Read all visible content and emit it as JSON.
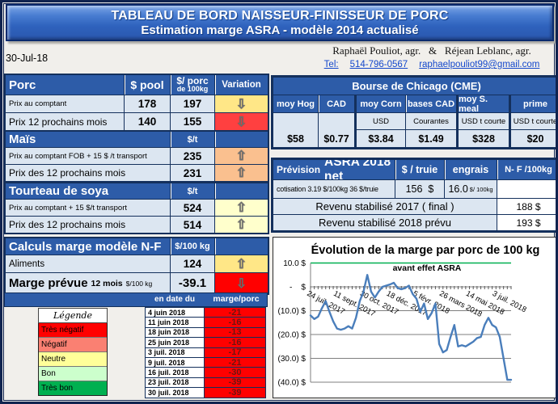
{
  "banner": {
    "line1": "TABLEAU DE BORD NAISSEUR-FINISSEUR DE PORC",
    "line2": "Estimation marge ASRA - modèle 2014 actualisé"
  },
  "date_label": "30-Jul-18",
  "contact": {
    "names": "Raphaël Pouliot, agr.   &   Réjean Leblanc, agr.",
    "tel_label": "Tel:",
    "phone": "514-796-0567",
    "email": "raphaelpouliot99@gmail.com"
  },
  "porc_table": {
    "title": "Porc",
    "col_pool": "$ pool",
    "col_porc_line1": "$/ porc",
    "col_porc_line2": "de 100kg",
    "col_variation": "Variation",
    "rows": [
      {
        "label": "Prix au comptant",
        "pool": "178",
        "porc": "197",
        "variation": "down",
        "variation_bg": "#FFE787"
      },
      {
        "label": "Prix 12 prochains mois",
        "pool": "140",
        "porc": "155",
        "variation": "down",
        "variation_bg": "#FF4040"
      }
    ]
  },
  "mais_table": {
    "title": "Maïs",
    "unit": "$/t",
    "rows": [
      {
        "label": "Prix au comptant  FOB + 15 $ /t transport",
        "value": "235",
        "variation": "up",
        "variation_bg": "#FAC08F"
      },
      {
        "label": "Prix des 12 prochains mois",
        "value": "231",
        "variation": "up",
        "variation_bg": "#FAC08F"
      }
    ]
  },
  "tourteau_table": {
    "title": "Tourteau de soya",
    "unit": "$/t",
    "rows": [
      {
        "label": "Prix au comptant + 15 $/t  transport",
        "value": "524",
        "variation": "up",
        "variation_bg": "#FFFFCC"
      },
      {
        "label": "Prix des 12 prochains mois",
        "value": "514",
        "variation": "up",
        "variation_bg": "#FFFFCC"
      }
    ]
  },
  "calculs_table": {
    "title": "Calculs marge  modèle N-F",
    "unit": "$/100 kg",
    "rows": [
      {
        "label": "Aliments",
        "value": "124",
        "variation": "up",
        "variation_bg": "#FFE787"
      },
      {
        "label": "Marge prévue",
        "label_mid": "12 mois",
        "label_small": "$/100 kg",
        "value": "-39.1",
        "variation": "down",
        "variation_bg": "#FF0000"
      }
    ]
  },
  "marge_table": {
    "col_date": "en date du",
    "col_value": "marge/porc",
    "value_bg": "#FF0000",
    "rows": [
      {
        "date": "4 juin 2018",
        "value": "-21"
      },
      {
        "date": "11 juin 2018",
        "value": "-16"
      },
      {
        "date": "18 juin 2018",
        "value": "-13"
      },
      {
        "date": "25 juin 2018",
        "value": "-16"
      },
      {
        "date": "3 juil. 2018",
        "value": "-17"
      },
      {
        "date": "9 juil. 2018",
        "value": "-21"
      },
      {
        "date": "16 juil. 2018",
        "value": "-30"
      },
      {
        "date": "23 juil. 2018",
        "value": "-39"
      },
      {
        "date": "30 juil. 2018",
        "value": "-39"
      }
    ]
  },
  "legende": {
    "title": "Légende",
    "items": [
      {
        "label": "Très négatif",
        "color": "#FF0000"
      },
      {
        "label": "Négatif",
        "color": "#FA8072"
      },
      {
        "label": "Neutre",
        "color": "#FFFF99"
      },
      {
        "label": "Bon",
        "color": "#CCFFCC"
      },
      {
        "label": "Très bon",
        "color": "#00B050"
      }
    ]
  },
  "chicago_table": {
    "title": "Bourse de Chicago (CME)",
    "columns": [
      {
        "header": "moy Hog",
        "unit": "",
        "value": "$58"
      },
      {
        "header": "CAD",
        "unit": "",
        "value": "$0.77"
      },
      {
        "header": "moy Corn",
        "unit": "USD",
        "value": "$3.84"
      },
      {
        "header": "bases CAD",
        "unit": "Courantes",
        "value": "$1.49"
      },
      {
        "header": "moy S. meal",
        "unit": "USD t courte",
        "value": "$328"
      },
      {
        "header": "prime",
        "unit": "USD t courte",
        "value": "$20"
      }
    ]
  },
  "prevision_table": {
    "title_prefix": "Prévision",
    "title_main": "ASRA 2018 net",
    "col_truie": "$ / truie",
    "col_engrais": "engrais",
    "col_nf": "N- F /100kg",
    "cotisation_label": "cotisation 3.19 $/100kg  36 $/truie",
    "truie_value": "156  $",
    "engrais_value": "16.0",
    "engrais_unit": "$/ 100kg",
    "rows": [
      {
        "label": "Revenu stabilisé 2017 ( final )",
        "value": "188 $"
      },
      {
        "label": "Revenu stabilisé 2018 prévu",
        "value": "193 $"
      }
    ]
  },
  "chart_data": {
    "type": "line",
    "title": "Évolution de la marge par porc de 100 kg",
    "subtitle": "avant effet ASRA",
    "ylim": [
      -40,
      10
    ],
    "grid": true,
    "legend_position": "none",
    "line_color": "#4a7ebb",
    "gridline_color": "#7f7f7f",
    "top_gridline_color": "#00B050",
    "y_ticks": [
      {
        "value": 10,
        "label": "10.0 $"
      },
      {
        "value": 0,
        "label": "-    $"
      },
      {
        "value": -10,
        "label": "(10.0) $"
      },
      {
        "value": -20,
        "label": "(20.0) $"
      },
      {
        "value": -30,
        "label": "(30.0) $"
      },
      {
        "value": -40,
        "label": "(40.0) $"
      }
    ],
    "x_ticks": [
      {
        "index": 0,
        "label": "24 juil. 2017"
      },
      {
        "index": 7,
        "label": "11 sept. 2017"
      },
      {
        "index": 14,
        "label": "30 oct. 2017"
      },
      {
        "index": 21,
        "label": "18 déc. 2017"
      },
      {
        "index": 28,
        "label": "5 févr. 2018"
      },
      {
        "index": 35,
        "label": "26 mars 2018"
      },
      {
        "index": 42,
        "label": "14 mai 2018"
      },
      {
        "index": 49,
        "label": "3 juil. 2018"
      }
    ],
    "series": [
      {
        "name": "marge par porc de 100 kg avant effet ASRA ($)",
        "frequency": "weekly",
        "values": [
          -12,
          -13.5,
          -12.5,
          -9,
          -6,
          -10.5,
          -14.5,
          -17.5,
          -18,
          -17.5,
          -16.5,
          -17.5,
          -13,
          -6,
          -2,
          5,
          -2,
          -4.5,
          -2,
          0,
          0.5,
          1,
          1.7,
          -0.5,
          -1,
          -0.5,
          0.5,
          -3,
          -5,
          -10.5,
          -7,
          -13.5,
          -11,
          -7,
          -24,
          -27.5,
          -26.5,
          -21,
          -16,
          -25,
          -24.5,
          -25,
          -24,
          -23,
          -21.5,
          -21,
          -16,
          -13,
          -16,
          -17,
          -21,
          -30,
          -39,
          -39
        ]
      }
    ]
  }
}
